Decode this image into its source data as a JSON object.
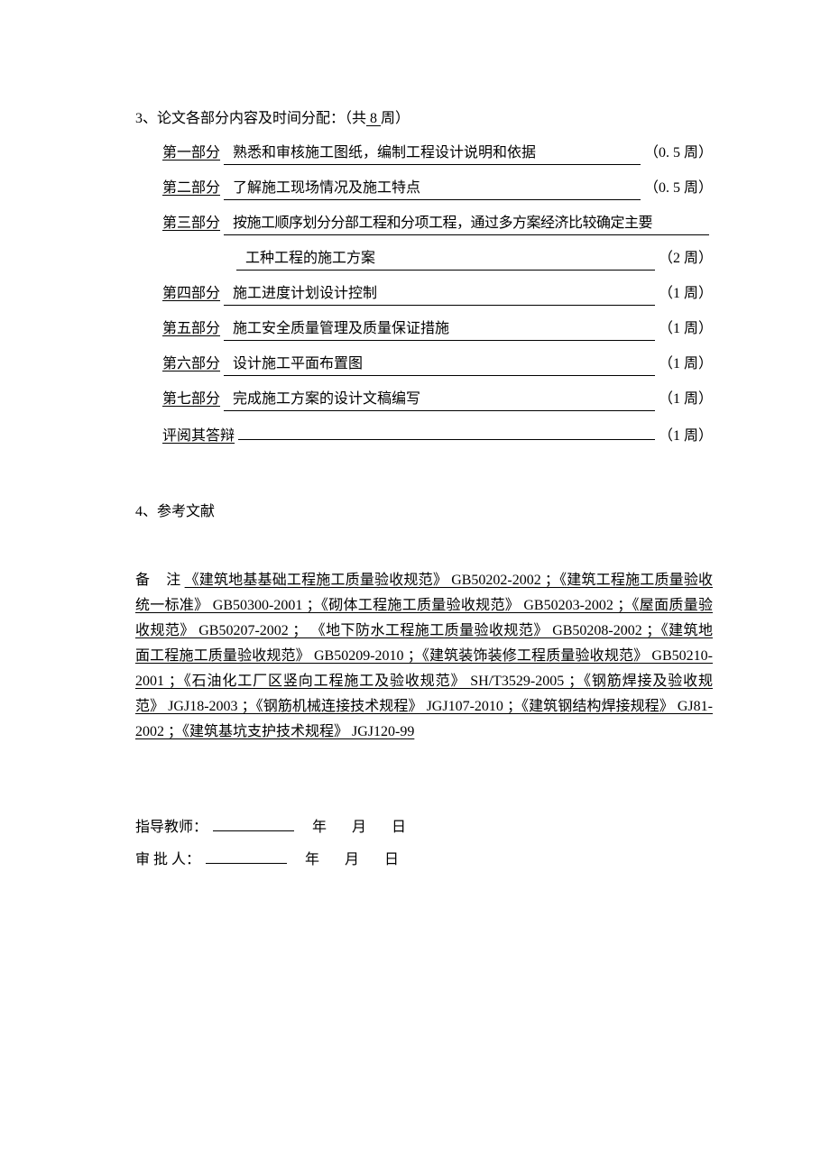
{
  "section3": {
    "heading_prefix": "3、论文各部分内容及时间分配：（共",
    "total_weeks": "  8  ",
    "heading_suffix": "周）",
    "parts": [
      {
        "label": "第一部分",
        "content": "熟悉和审核施工图纸，编制工程设计说明和依据",
        "duration": "（0. 5 周）"
      },
      {
        "label": "第二部分",
        "content": "了解施工现场情况及施工特点",
        "duration": "（0. 5 周）"
      },
      {
        "label": "第三部分",
        "content": "按施工顺序划分分部工程和分项工程，通过多方案经济比较确定主要",
        "duration": ""
      },
      {
        "label": "",
        "content": "工种工程的施工方案",
        "duration": "（2 周）"
      },
      {
        "label": "第四部分",
        "content": "施工进度计划设计控制",
        "duration": "（1 周）"
      },
      {
        "label": "第五部分",
        "content": "施工安全质量管理及质量保证措施",
        "duration": "（1 周）"
      },
      {
        "label": "第六部分",
        "content": "设计施工平面布置图",
        "duration": "（1 周）"
      },
      {
        "label": "第七部分",
        "content": "完成施工方案的设计文稿编写",
        "duration": "（1 周）"
      }
    ],
    "review_label": "评阅其答辩",
    "review_duration": "（1 周）"
  },
  "section4": {
    "heading": "4、参考文献"
  },
  "notes": {
    "label": "备",
    "label2": "注",
    "text": "《建筑地基基础工程施工质量验收规范》 GB50202-2002 ；《建筑工程施工质量验收统一标准》 GB50300-2001 ；《砌体工程施工质量验收规范》 GB50203-2002 ；《屋面质量验收规范》 GB50207-2002 ； 《地下防水工程施工质量验收规范》 GB50208-2002 ；《建筑地面工程施工质量验收规范》 GB50209-2010 ；《建筑装饰装修工程质量验收规范》 GB50210-2001 ；《石油化工厂区竖向工程施工及验收规范》 SH/T3529-2005 ；《钢筋焊接及验收规范》 JGJ18-2003 ；《钢筋机械连接技术规程》 JGJ107-2010 ；《建筑钢结构焊接规程》 GJ81-2002 ；《建筑基坑支护技术规程》 JGJ120-99"
  },
  "signatures": {
    "advisor_label": "指导教师：",
    "approver_label": "审 批 人：",
    "year": "年",
    "month": "月",
    "day": "日"
  },
  "style": {
    "page_bg": "#ffffff",
    "text_color": "#000000",
    "font_size_pt": 12,
    "font_family": "SimSun"
  }
}
